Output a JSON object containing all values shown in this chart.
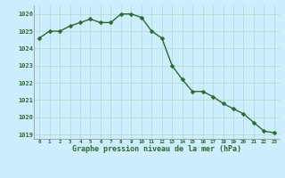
{
  "x": [
    0,
    1,
    2,
    3,
    4,
    5,
    6,
    7,
    8,
    9,
    10,
    11,
    12,
    13,
    14,
    15,
    16,
    17,
    18,
    19,
    20,
    21,
    22,
    23
  ],
  "y": [
    1024.6,
    1025.0,
    1025.0,
    1025.3,
    1025.5,
    1025.7,
    1025.5,
    1025.5,
    1026.0,
    1026.0,
    1025.8,
    1025.0,
    1024.6,
    1023.0,
    1022.2,
    1021.5,
    1021.5,
    1021.2,
    1020.8,
    1020.5,
    1020.2,
    1019.7,
    1019.2,
    1019.1
  ],
  "line_color": "#2d6a2d",
  "marker_color": "#2d6a2d",
  "bg_color": "#cceeff",
  "grid_color": "#aaddcc",
  "xlabel": "Graphe pression niveau de la mer (hPa)",
  "xlabel_color": "#2d6a2d",
  "tick_color": "#2d6a2d",
  "ylim_min": 1018.75,
  "ylim_max": 1026.5,
  "yticks": [
    1019,
    1020,
    1021,
    1022,
    1023,
    1024,
    1025,
    1026
  ],
  "xticks": [
    0,
    1,
    2,
    3,
    4,
    5,
    6,
    7,
    8,
    9,
    10,
    11,
    12,
    13,
    14,
    15,
    16,
    17,
    18,
    19,
    20,
    21,
    22,
    23
  ],
  "linewidth": 1.0,
  "markersize": 2.5,
  "marker": "D"
}
